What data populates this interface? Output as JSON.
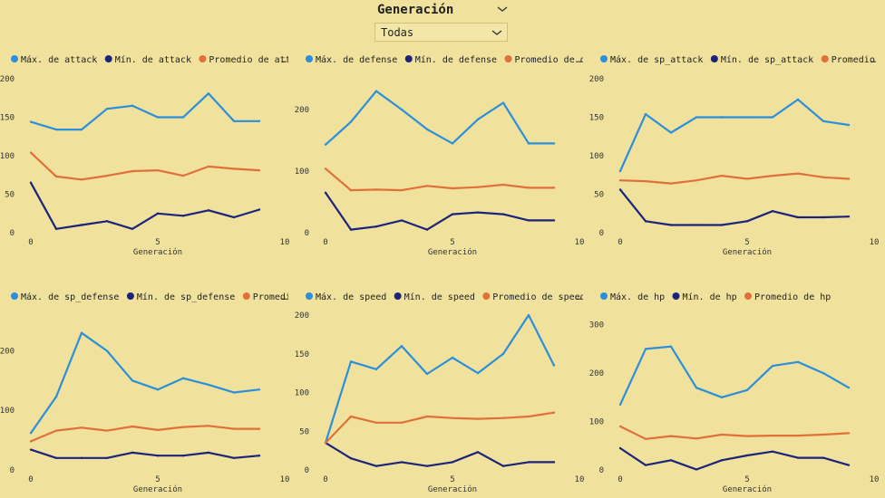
{
  "slicer": {
    "title": "Generación",
    "selected": "Todas"
  },
  "colors": {
    "max": "#2b8fdb",
    "min": "#1c237a",
    "avg": "#e0703a",
    "background": "#f0e29c"
  },
  "chart_data": [
    {
      "type": "line",
      "xlabel": "Generación",
      "xticks": [
        0,
        5,
        10
      ],
      "yticks": [
        0,
        50,
        100,
        150,
        200
      ],
      "xlim": [
        0,
        10
      ],
      "ylim": [
        0,
        200
      ],
      "x": [
        0,
        1,
        2,
        3,
        4,
        5,
        6,
        7,
        8,
        9
      ],
      "series": [
        {
          "name": "Máx. de attack",
          "key": "max",
          "values": [
            144,
            134,
            134,
            161,
            165,
            150,
            150,
            181,
            145,
            145
          ]
        },
        {
          "name": "Mín. de attack",
          "key": "min",
          "values": [
            65,
            5,
            10,
            15,
            5,
            25,
            22,
            29,
            20,
            30
          ]
        },
        {
          "name": "Promedio de attack",
          "key": "avg",
          "values": [
            104,
            73,
            69,
            74,
            80,
            81,
            74,
            86,
            83,
            81
          ]
        }
      ]
    },
    {
      "type": "line",
      "xlabel": "Generación",
      "xticks": [
        0,
        5,
        10
      ],
      "yticks": [
        0,
        100,
        200
      ],
      "xlim": [
        0,
        10
      ],
      "ylim": [
        0,
        250
      ],
      "x": [
        0,
        1,
        2,
        3,
        4,
        5,
        6,
        7,
        8,
        9
      ],
      "series": [
        {
          "name": "Máx. de defense",
          "key": "max",
          "values": [
            143,
            180,
            230,
            200,
            168,
            145,
            184,
            211,
            145,
            145
          ]
        },
        {
          "name": "Mín. de defense",
          "key": "min",
          "values": [
            65,
            5,
            10,
            20,
            5,
            30,
            33,
            30,
            20,
            20
          ]
        },
        {
          "name": "Promedio de defense",
          "key": "avg",
          "values": [
            104,
            69,
            70,
            69,
            76,
            72,
            74,
            78,
            73,
            73
          ]
        }
      ]
    },
    {
      "type": "line",
      "xlabel": "Generación",
      "xticks": [
        0,
        5,
        10
      ],
      "yticks": [
        0,
        50,
        100,
        150,
        200
      ],
      "xlim": [
        0,
        10
      ],
      "ylim": [
        0,
        200
      ],
      "x": [
        0,
        1,
        2,
        3,
        4,
        5,
        6,
        7,
        8,
        9
      ],
      "series": [
        {
          "name": "Máx. de sp_attack",
          "key": "max",
          "values": [
            80,
            154,
            130,
            150,
            150,
            150,
            150,
            173,
            145,
            140
          ]
        },
        {
          "name": "Mín. de sp_attack",
          "key": "min",
          "values": [
            56,
            15,
            10,
            10,
            10,
            15,
            28,
            20,
            20,
            21
          ]
        },
        {
          "name": "Promedio de sp_attack",
          "key": "avg",
          "values": [
            68,
            67,
            64,
            68,
            74,
            70,
            74,
            77,
            72,
            70
          ]
        }
      ]
    },
    {
      "type": "line",
      "xlabel": "Generación",
      "xticks": [
        0,
        5,
        10
      ],
      "yticks": [
        0,
        100,
        200
      ],
      "xlim": [
        0,
        10
      ],
      "ylim": [
        0,
        260
      ],
      "x": [
        0,
        1,
        2,
        3,
        4,
        5,
        6,
        7,
        8,
        9
      ],
      "series": [
        {
          "name": "Máx. de sp_defense",
          "key": "max",
          "values": [
            62,
            123,
            230,
            200,
            150,
            135,
            154,
            143,
            130,
            135
          ]
        },
        {
          "name": "Mín. de sp_defense",
          "key": "min",
          "values": [
            34,
            20,
            20,
            20,
            29,
            24,
            24,
            29,
            20,
            24
          ]
        },
        {
          "name": "Promedio de sp_defense",
          "key": "avg",
          "values": [
            48,
            66,
            71,
            66,
            73,
            67,
            72,
            74,
            69,
            69
          ]
        }
      ]
    },
    {
      "type": "line",
      "xlabel": "Generación",
      "xticks": [
        0,
        5,
        10
      ],
      "yticks": [
        0,
        50,
        100,
        150,
        200
      ],
      "xlim": [
        0,
        10
      ],
      "ylim": [
        0,
        200
      ],
      "x": [
        0,
        1,
        2,
        3,
        4,
        5,
        6,
        7,
        8,
        9
      ],
      "series": [
        {
          "name": "Máx. de speed",
          "key": "max",
          "values": [
            35,
            140,
            130,
            160,
            124,
            145,
            125,
            150,
            200,
            135
          ]
        },
        {
          "name": "Mín. de speed",
          "key": "min",
          "values": [
            35,
            15,
            5,
            10,
            5,
            10,
            23,
            5,
            10,
            10
          ]
        },
        {
          "name": "Promedio de speed",
          "key": "avg",
          "values": [
            35,
            69,
            61,
            61,
            69,
            67,
            66,
            67,
            69,
            74
          ]
        }
      ]
    },
    {
      "type": "line",
      "xlabel": "Generación",
      "xticks": [
        0,
        5,
        10
      ],
      "yticks": [
        0,
        100,
        200,
        300
      ],
      "xlim": [
        0,
        10
      ],
      "ylim": [
        0,
        320
      ],
      "x": [
        0,
        1,
        2,
        3,
        4,
        5,
        6,
        7,
        8,
        9
      ],
      "series": [
        {
          "name": "Máx. de hp",
          "key": "max",
          "values": [
            135,
            250,
            255,
            170,
            150,
            165,
            215,
            223,
            200,
            170
          ]
        },
        {
          "name": "Mín. de hp",
          "key": "min",
          "values": [
            45,
            10,
            20,
            1,
            20,
            30,
            38,
            25,
            25,
            10
          ]
        },
        {
          "name": "Promedio de hp",
          "key": "avg",
          "values": [
            90,
            64,
            70,
            65,
            73,
            70,
            71,
            71,
            73,
            76
          ]
        }
      ]
    }
  ]
}
